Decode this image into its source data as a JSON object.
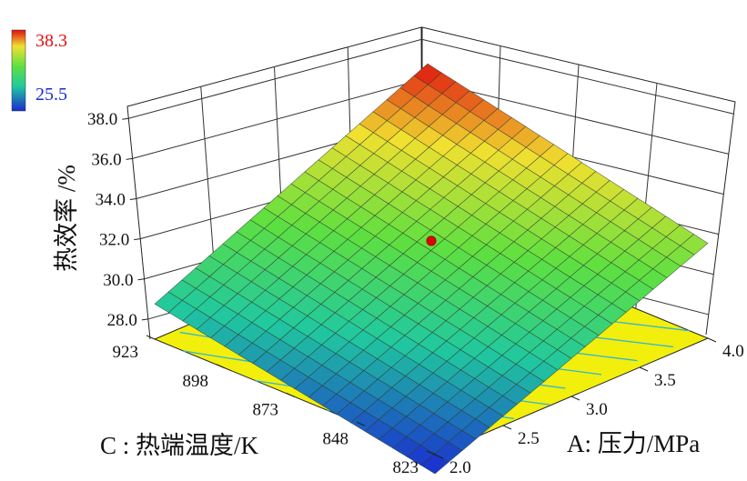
{
  "chart_data": {
    "type": "surface3d",
    "title": "",
    "zlabel": "热效率 /%",
    "xlabel": "A: 压力/MPa",
    "ylabel": "C  : 热端温度/K",
    "x_ticks": [
      "2.0",
      "2.5",
      "3.0",
      "3.5",
      "4.0"
    ],
    "y_ticks": [
      "823",
      "848",
      "873",
      "898",
      "923"
    ],
    "z_ticks": [
      "28.0",
      "30.0",
      "32.0",
      "34.0",
      "36.0",
      "38.0"
    ],
    "xlim": [
      2.0,
      4.0
    ],
    "ylim": [
      823,
      923
    ],
    "zlim": [
      27.0,
      38.0
    ],
    "z_corners": {
      "x2.0_y823": 25.5,
      "x4.0_y823": 33.7,
      "x2.0_y923": 29.4,
      "x4.0_y923": 38.3
    },
    "design_point": {
      "x": 3.0,
      "y": 873,
      "z": 33.9
    },
    "legend": {
      "max_label": "38.3",
      "min_label": "25.5",
      "max_value": 38.3,
      "min_value": 25.5,
      "max_color": "#e01010",
      "min_color": "#1a2ad0"
    },
    "floor_color": "#f2ef0c",
    "contour_color": "#2fb6d8",
    "grid": true
  }
}
